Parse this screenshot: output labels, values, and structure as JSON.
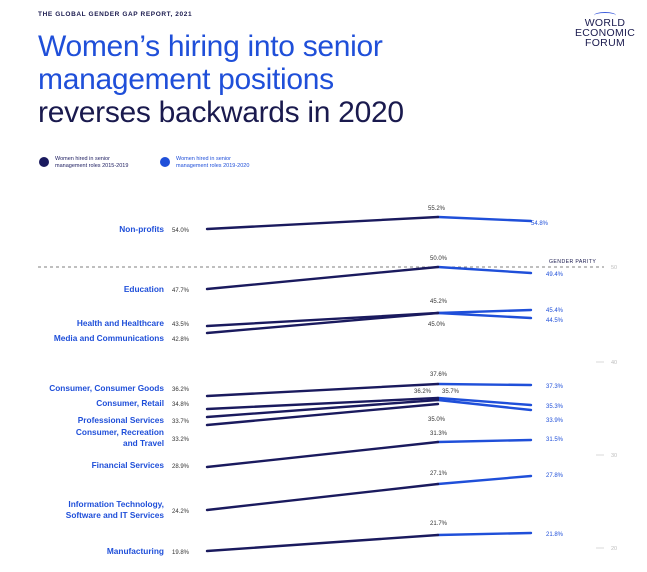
{
  "header": {
    "report_label": "THE GLOBAL GENDER GAP REPORT, 2021",
    "title_line1": "Women’s hiring into senior",
    "title_line2": "management positions",
    "title_line3": "reverses backwards in 2020",
    "logo_line1": "WORLD",
    "logo_line2": "ECONOMIC",
    "logo_line3": "FORUM"
  },
  "colors": {
    "series1": "#1a1a5e",
    "series2": "#1f4fd9",
    "title_blue": "#1f4fd9",
    "navy": "#1a1a4e",
    "label_blue": "#1f4fd9"
  },
  "chart_data": {
    "type": "line",
    "legend": {
      "series1_line1": "Women hired in senior",
      "series1_line2": "management roles 2015-2019",
      "series2_line1": "Women hired in senior",
      "series2_line2": "management roles 2019-2020"
    },
    "gender_parity_label": "GENDER PARITY",
    "x": [
      "2015",
      "2019",
      "2020"
    ],
    "ylim": [
      19.8,
      55.2
    ],
    "reference_ticks": [
      "50",
      "40",
      "30",
      "20"
    ],
    "series": [
      {
        "name": "Non-profits",
        "v2015": "54.0%",
        "v2019": "55.2%",
        "v2020": "54.8%",
        "values": [
          54.0,
          55.2,
          54.8
        ]
      },
      {
        "name": "Education",
        "v2015": "47.7%",
        "v2019": "50.0%",
        "v2020": "49.4%",
        "values": [
          47.7,
          50.0,
          49.4
        ]
      },
      {
        "name": "Health and Healthcare",
        "v2015": "43.5%",
        "v2019": "45.2%",
        "v2020": "45.4%",
        "values": [
          43.5,
          45.2,
          45.4
        ]
      },
      {
        "name": "Media and Communications",
        "v2015": "42.8%",
        "v2019": "45.0%",
        "v2020": "44.5%",
        "values": [
          42.8,
          45.0,
          44.5
        ]
      },
      {
        "name": "Consumer, Consumer Goods",
        "v2015": "36.2%",
        "v2019": "37.6%",
        "v2020": "37.3%",
        "values": [
          36.2,
          37.6,
          37.3
        ]
      },
      {
        "name": "Consumer, Retail",
        "v2015": "34.8%",
        "v2019": "36.2%",
        "v2020": "35.3%",
        "values": [
          34.8,
          36.2,
          35.3
        ]
      },
      {
        "name": "Professional Services",
        "v2015": "33.7%",
        "v2019": "35.7%",
        "v2020": "33.9%",
        "values": [
          33.7,
          35.7,
          33.9
        ]
      },
      {
        "name": "Consumer, Recreation and Travel",
        "v2015": "33.2%",
        "v2019": "35.0%",
        "v2020": "",
        "values": [
          33.2,
          35.0,
          null
        ]
      },
      {
        "name": "Financial Services",
        "v2015": "28.9%",
        "v2019": "31.3%",
        "v2020": "31.5%",
        "values": [
          28.9,
          31.3,
          31.5
        ]
      },
      {
        "name": "Information Technology, Software and IT Services",
        "v2015": "24.2%",
        "v2019": "27.1%",
        "v2020": "27.8%",
        "values": [
          24.2,
          27.1,
          27.8
        ]
      },
      {
        "name": "Manufacturing",
        "v2015": "19.8%",
        "v2019": "21.7%",
        "v2020": "21.8%",
        "values": [
          19.8,
          21.7,
          21.8
        ]
      }
    ]
  }
}
